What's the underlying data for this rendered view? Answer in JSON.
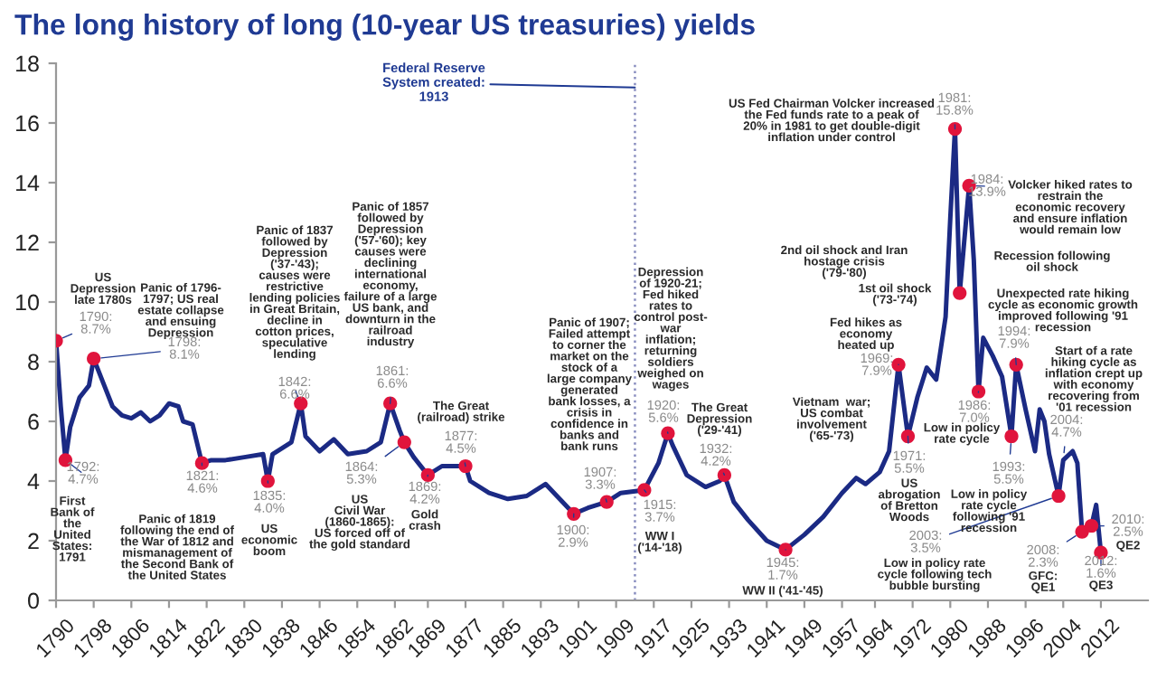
{
  "chart_data": {
    "type": "line",
    "title": "The long history of long (10-year US treasuries) yields",
    "xlim": [
      1790,
      2022
    ],
    "xticks": [
      1790,
      1798,
      1806,
      1814,
      1822,
      1830,
      1838,
      1846,
      1854,
      1862,
      1869,
      1877,
      1885,
      1893,
      1901,
      1909,
      1917,
      1925,
      1933,
      1941,
      1949,
      1957,
      1964,
      1972,
      1980,
      1988,
      1996,
      2004,
      2012
    ],
    "ylim": [
      0,
      18
    ],
    "yticks": [
      0,
      2,
      4,
      6,
      8,
      10,
      12,
      14,
      16,
      18
    ],
    "grid": false,
    "legend": false,
    "series": [
      {
        "color": "#1b2a84",
        "x": [
          1790,
          1791,
          1792,
          1793,
          1794,
          1795,
          1796,
          1797,
          1798,
          1799,
          1800,
          1802,
          1804,
          1806,
          1808,
          1810,
          1812,
          1814,
          1816,
          1817,
          1819,
          1821,
          1823,
          1826,
          1830,
          1834,
          1835,
          1836,
          1840,
          1842,
          1843,
          1846,
          1849,
          1852,
          1856,
          1859,
          1861,
          1863,
          1864,
          1866,
          1869,
          1872,
          1877,
          1878,
          1882,
          1886,
          1890,
          1894,
          1897,
          1900,
          1903,
          1907,
          1910,
          1915,
          1918,
          1920,
          1921,
          1924,
          1928,
          1931,
          1932,
          1934,
          1937,
          1941,
          1945,
          1949,
          1953,
          1957,
          1960,
          1962,
          1965,
          1967,
          1969,
          1971,
          1973,
          1975,
          1977,
          1979,
          1980,
          1981,
          1982,
          1984,
          1985,
          1986,
          1987,
          1989,
          1991,
          1993,
          1994,
          1996,
          1998,
          1999,
          2000,
          2001,
          2003,
          2004,
          2006,
          2007,
          2008,
          2010,
          2011,
          2012
        ],
        "values": [
          8.7,
          6.5,
          4.7,
          5.8,
          6.3,
          6.8,
          7.0,
          7.2,
          8.1,
          7.7,
          7.3,
          6.5,
          6.2,
          6.1,
          6.3,
          6.0,
          6.2,
          6.6,
          6.5,
          6.0,
          5.9,
          4.6,
          4.7,
          4.7,
          4.8,
          4.9,
          4.0,
          4.9,
          5.3,
          6.6,
          5.5,
          5.0,
          5.4,
          4.9,
          5.0,
          5.3,
          6.6,
          5.7,
          5.3,
          4.8,
          4.2,
          4.5,
          4.5,
          4.0,
          3.6,
          3.4,
          3.5,
          3.9,
          3.4,
          2.9,
          3.1,
          3.3,
          3.6,
          3.7,
          4.6,
          5.6,
          5.2,
          4.2,
          3.8,
          4.0,
          4.2,
          3.3,
          2.7,
          2.0,
          1.7,
          2.2,
          2.8,
          3.6,
          4.1,
          3.9,
          4.3,
          5.0,
          7.9,
          5.5,
          6.8,
          7.8,
          7.4,
          9.5,
          12.8,
          15.8,
          10.3,
          13.9,
          11.4,
          7.0,
          8.8,
          8.2,
          7.5,
          5.5,
          7.9,
          6.4,
          5.0,
          6.4,
          6.0,
          4.9,
          3.5,
          4.7,
          5.0,
          4.6,
          2.3,
          2.5,
          3.2,
          1.6
        ]
      },
      {
        "type": "scatter",
        "color": "#e0143c",
        "marker": "circle",
        "x": [
          1790,
          1792,
          1798,
          1821,
          1835,
          1842,
          1861,
          1864,
          1869,
          1877,
          1900,
          1907,
          1915,
          1920,
          1932,
          1945,
          1969,
          1971,
          1981,
          1982,
          1984,
          1986,
          1993,
          1994,
          2003,
          2008,
          2010,
          2012
        ],
        "values": [
          8.7,
          4.7,
          8.1,
          4.6,
          4.0,
          6.6,
          6.6,
          5.3,
          4.2,
          4.5,
          2.9,
          3.3,
          3.7,
          5.6,
          4.2,
          1.7,
          7.9,
          5.5,
          15.8,
          10.3,
          13.9,
          7.0,
          5.5,
          7.9,
          3.5,
          2.3,
          2.5,
          1.6
        ]
      }
    ],
    "ref_lines": [
      {
        "axis": "x",
        "value": 1913,
        "label": "Federal Reserve\nSystem created:\n1913",
        "color": "#8a8fc0",
        "line_style": "dotted"
      }
    ],
    "annotations": [
      "US\nDepression\nlate 1780s",
      {
        "text": "1790:\n8.7%",
        "x": 1790,
        "y": 8.7
      },
      {
        "text": "1792:\n4.7%",
        "x": 1792,
        "y": 4.7
      },
      "First\nBank of\nthe\nUnited\nStates:\n1791",
      "Panic of 1796-\n1797; US real\nestate collapse\nand ensuing\nDepression",
      {
        "text": "1798:\n8.1%",
        "x": 1798,
        "y": 8.1
      },
      "Panic of 1837\nfollowed by\nDepression\n('37-'43);\ncauses were\nrestrictive\nlending policies\nin Great Britain,\ndecline in\ncotton prices,\nspeculative\nlending",
      {
        "text": "1842:\n6.6%",
        "x": 1842,
        "y": 6.6
      },
      {
        "text": "1821:\n4.6%",
        "x": 1821,
        "y": 4.6
      },
      "Panic of 1819\nfollowing the end of\nthe War of 1812 and\nmismanagement of\nthe Second Bank of\nthe United States",
      {
        "text": "1835:\n4.0%",
        "x": 1835,
        "y": 4.0
      },
      "US\neconomic\nboom",
      {
        "text": "1864:\n5.3%",
        "x": 1864,
        "y": 5.3
      },
      "US\nCivil War\n(1860-1865):\nUS forced off of\nthe gold standard",
      "Panic of 1857\nfollowed by\nDepression\n('57-'60); key\ncauses were\ndeclining\ninternational\neconomy,\nfailure of a large\nUS bank, and\ndownturn in the\nrailroad\nindustry",
      {
        "text": "1861:\n6.6%",
        "x": 1861,
        "y": 6.6
      },
      {
        "text": "1869:\n4.2%",
        "x": 1869,
        "y": 4.2
      },
      "Gold\ncrash",
      "The Great\n(railroad) strike",
      {
        "text": "1877:\n4.5%",
        "x": 1877,
        "y": 4.5
      },
      "Panic of 1907;\nFailed attempt\nto corner the\nmarket on the\nstock of a\nlarge company\ngenerated\nbank losses, a\ncrisis in\nconfidence in\nbanks and\nbank runs",
      {
        "text": "1907:\n3.3%",
        "x": 1907,
        "y": 3.3
      },
      {
        "text": "1900:\n2.9%",
        "x": 1900,
        "y": 2.9
      },
      {
        "text": "1915:\n3.7%",
        "x": 1915,
        "y": 3.7
      },
      "WW I\n('14-'18)",
      "Depression\nof 1920-21;\nFed hiked\nrates to\ncontrol post-\nwar\ninflation;\nreturning\nsoldiers\nweighed on\nwages",
      {
        "text": "1920:\n5.6%",
        "x": 1920,
        "y": 5.6
      },
      "The Great\nDepression\n('29-'41)",
      {
        "text": "1932:\n4.2%",
        "x": 1932,
        "y": 4.2
      },
      "US Fed Chairman Volcker increased\nthe Fed funds rate to a peak of\n20% in 1981 to get double-digit\ninflation under control",
      {
        "text": "1981:\n15.8%",
        "x": 1981,
        "y": 15.8
      },
      {
        "text": "1984:\n13.9%",
        "x": 1984,
        "y": 13.9
      },
      "Volcker hiked rates to\nrestrain the\neconomic recovery\nand ensure inflation\nwould remain low",
      "2nd oil shock and Iran\nhostage crisis\n('79-'80)",
      "Recession following\noil shock",
      "1st oil shock\n('73-'74)",
      "Unexpected rate hiking\ncycle as economic growth\nimproved following '91\nrecession",
      "Fed hikes as\neconomy\nheated up",
      {
        "text": "1969:\n7.9%",
        "x": 1969,
        "y": 7.9
      },
      {
        "text": "1994:\n7.9%",
        "x": 1994,
        "y": 7.9
      },
      "Start of a rate\nhiking cycle as\ninflation crept up\nwith economy\nrecovering from\n'01 recession",
      {
        "text": "2004:\n4.7%",
        "x": 2004,
        "y": 4.7
      },
      {
        "text": "1986:\n7.0%",
        "x": 1986,
        "y": 7.0
      },
      "Low in policy\nrate cycle",
      "Vietnam  war;\nUS combat\ninvolvement\n('65-'73)",
      {
        "text": "1971:\n5.5%",
        "x": 1971,
        "y": 5.5
      },
      "US\nabrogation\nof Bretton\nWoods",
      {
        "text": "1993:\n5.5%",
        "x": 1993,
        "y": 5.5
      },
      "Low in policy\nrate cycle\nfollowing '91\nrecession",
      {
        "text": "2003:\n3.5%",
        "x": 2003,
        "y": 3.5
      },
      "Low in policy rate\ncycle following tech\nbubble bursting",
      {
        "text": "2008:\n2.3%",
        "x": 2008,
        "y": 2.3
      },
      "GFC:\nQE1",
      {
        "text": "2010:\n2.5%",
        "x": 2010,
        "y": 2.5
      },
      "QE2",
      {
        "text": "2012:\n1.6%",
        "x": 2012,
        "y": 1.6
      },
      "QE3",
      {
        "text": "1945:\n1.7%",
        "x": 1945,
        "y": 1.7
      },
      "WW II ('41-'45)"
    ]
  }
}
